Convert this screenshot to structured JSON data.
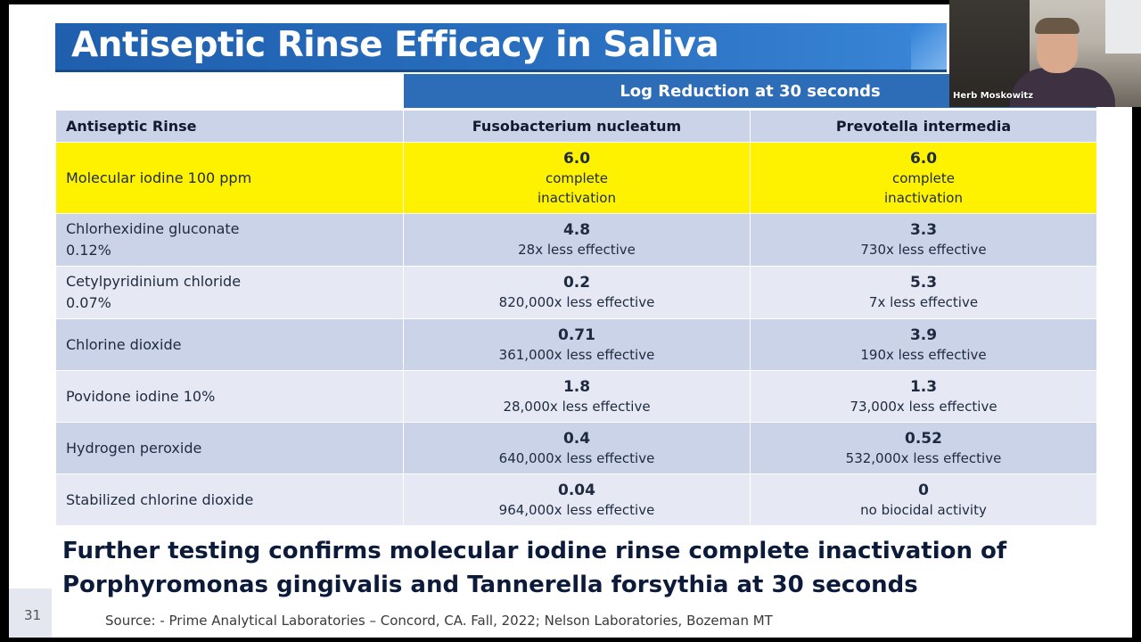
{
  "slide": {
    "title": "Antiseptic Rinse Efficacy in Saliva",
    "log_header": "Log Reduction at 30 seconds",
    "columns": [
      "Antiseptic Rinse",
      "Fusobacterium nucleatum",
      "Prevotella intermedia"
    ],
    "rows": [
      {
        "name": [
          "Molecular iodine 100 ppm"
        ],
        "fuso_value": "6.0",
        "fuso_desc": "complete inactivation",
        "prev_value": "6.0",
        "prev_desc": "complete inactivation"
      },
      {
        "name": [
          "Chlorhexidine gluconate",
          "0.12%"
        ],
        "fuso_value": "4.8",
        "fuso_desc": "28x less effective",
        "prev_value": "3.3",
        "prev_desc": "730x less effective"
      },
      {
        "name": [
          "Cetylpyridinium chloride",
          "0.07%"
        ],
        "fuso_value": "0.2",
        "fuso_desc": "820,000x less effective",
        "prev_value": "5.3",
        "prev_desc": "7x less effective"
      },
      {
        "name": [
          "Chlorine dioxide"
        ],
        "fuso_value": "0.71",
        "fuso_desc": "361,000x less effective",
        "prev_value": "3.9",
        "prev_desc": "190x less effective"
      },
      {
        "name": [
          "Povidone iodine 10%"
        ],
        "fuso_value": "1.8",
        "fuso_desc": "28,000x less effective",
        "prev_value": "1.3",
        "prev_desc": "73,000x less effective"
      },
      {
        "name": [
          "Hydrogen peroxide"
        ],
        "fuso_value": "0.4",
        "fuso_desc": "640,000x less effective",
        "prev_value": "0.52",
        "prev_desc": "532,000x less effective"
      },
      {
        "name": [
          "Stabilized chlorine dioxide"
        ],
        "fuso_value": "0.04",
        "fuso_desc": "964,000x less effective",
        "prev_value": "0",
        "prev_desc": "no biocidal activity"
      }
    ],
    "footnote_lines": [
      "Further testing confirms molecular iodine rinse complete inactivation of",
      "Porphyromonas gingivalis and Tannerella forsythia at 30 seconds"
    ],
    "source": "Source: - Prime Analytical Laboratories – Concord, CA. Fall, 2022; Nelson Laboratories, Bozeman MT",
    "slide_number": "31"
  },
  "webcam": {
    "participant_name": "Herb Moskowitz"
  },
  "colors": {
    "title_blue": "#2a6fc0",
    "highlight_yellow": "#fff200",
    "row_dark": "#cbd3e8",
    "row_light": "#e6e9f3"
  }
}
